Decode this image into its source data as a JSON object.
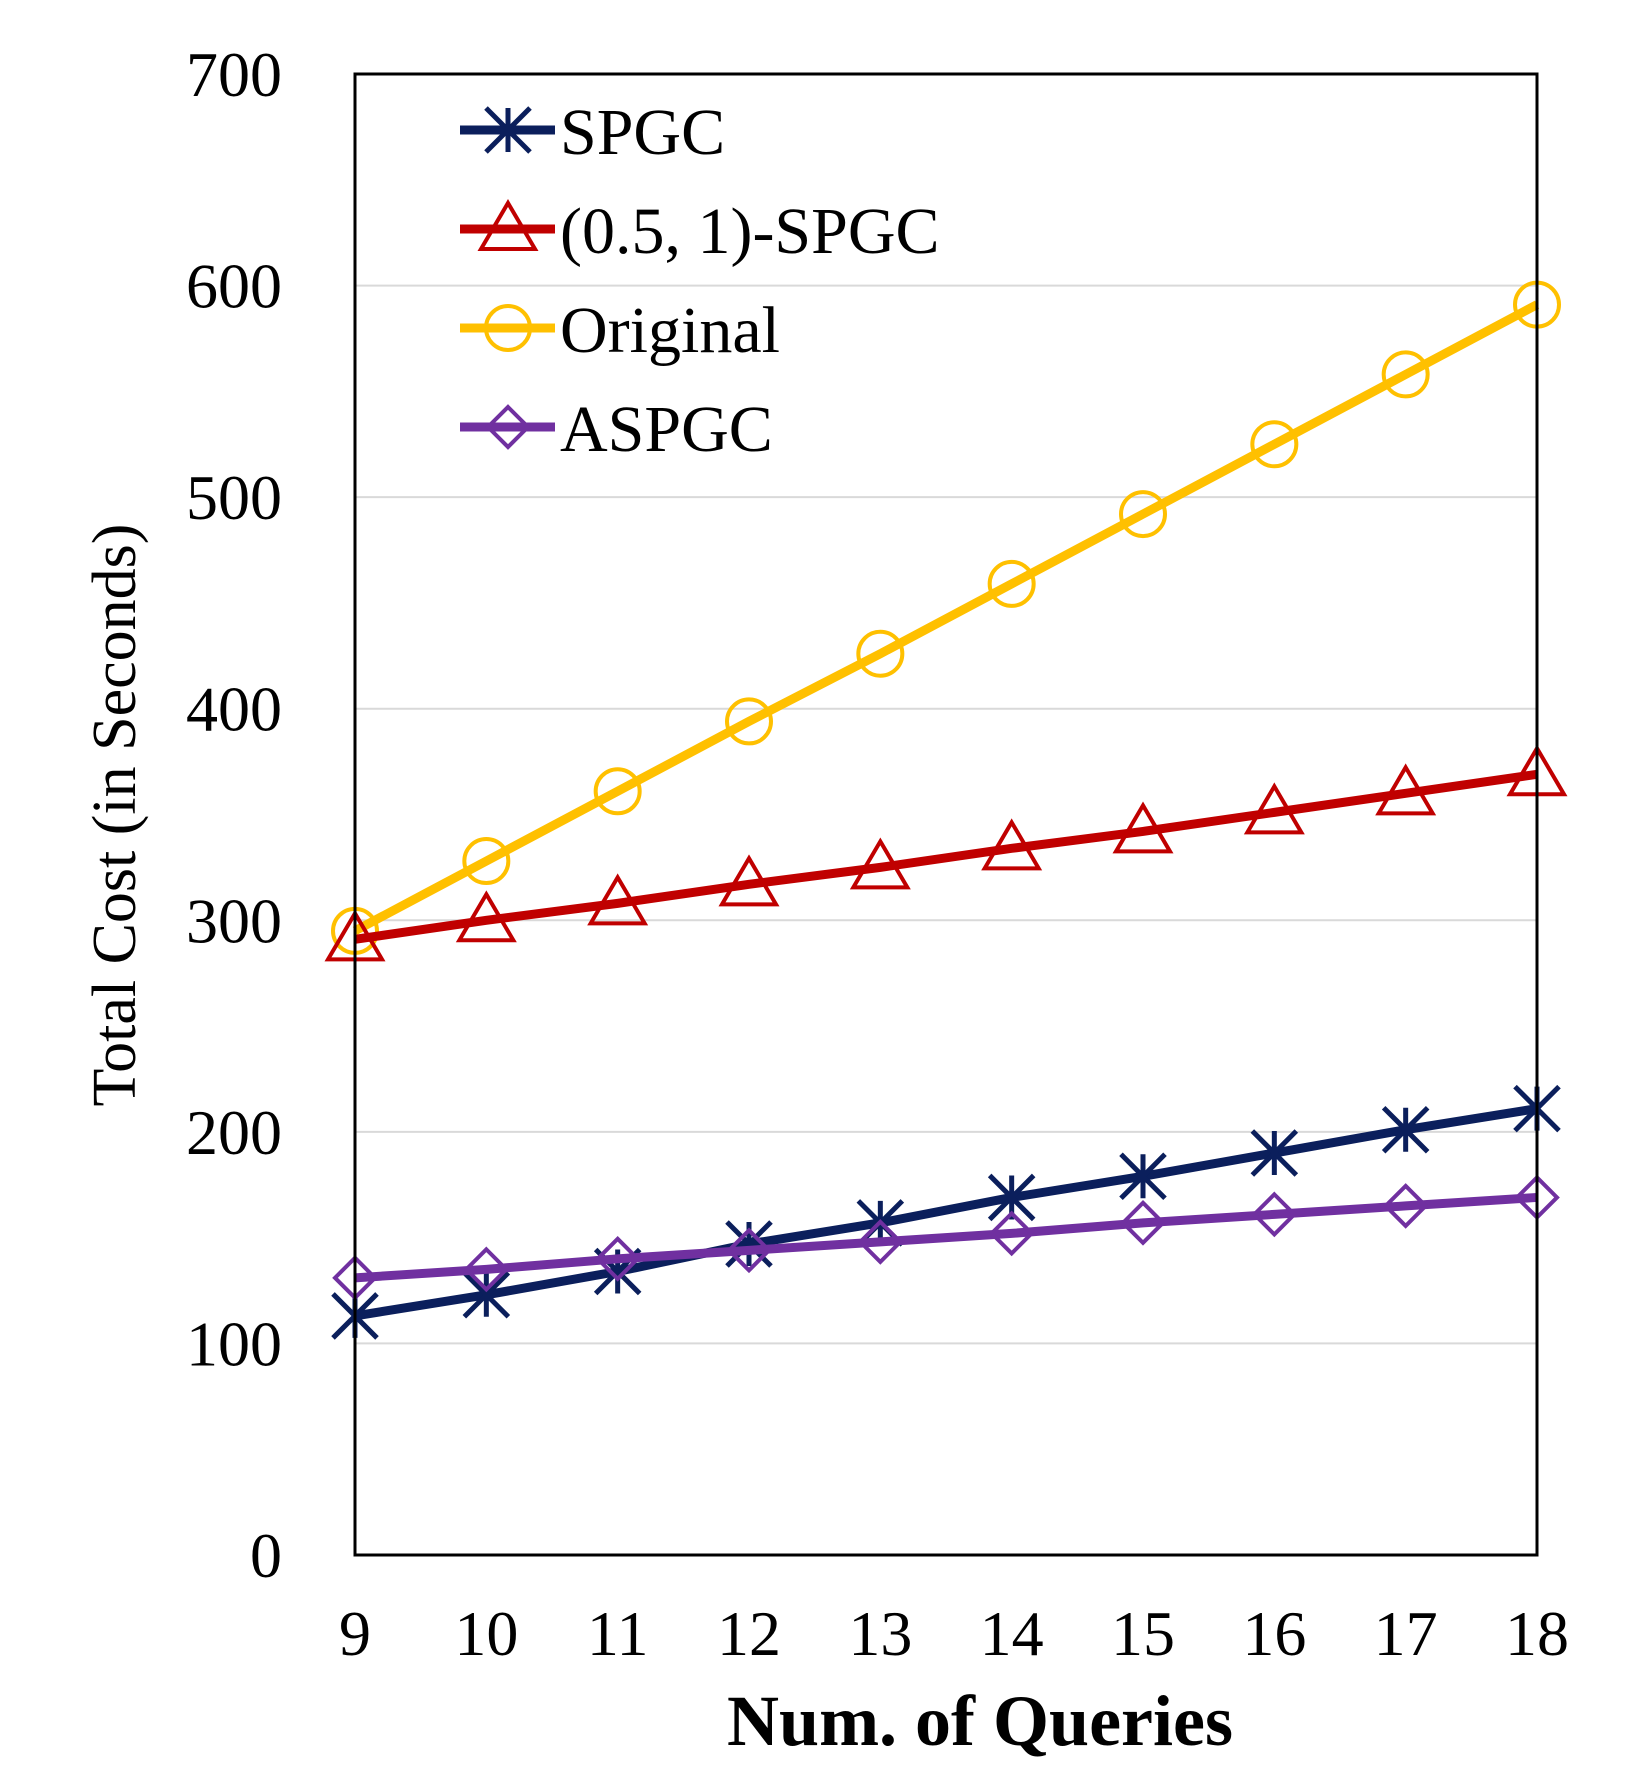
{
  "chart_data": {
    "type": "line",
    "title": "",
    "xlabel": "Num. of Queries",
    "ylabel": "Total Cost (in Seconds)",
    "x": [
      9,
      10,
      11,
      12,
      13,
      14,
      15,
      16,
      17,
      18
    ],
    "ylim": [
      0,
      700
    ],
    "yticks": [
      0,
      100,
      200,
      300,
      400,
      500,
      600,
      700
    ],
    "grid": "horizontal",
    "legend_position": "top-left",
    "series": [
      {
        "name": "SPGC",
        "color": "#0b1f5c",
        "marker": "asterisk",
        "values": [
          113,
          123,
          134,
          147,
          157,
          169,
          179,
          190,
          201,
          211
        ]
      },
      {
        "name": "(0.5, 1)-SPGC",
        "color": "#c00000",
        "marker": "triangle",
        "values": [
          291,
          300,
          308,
          317,
          325,
          334,
          342,
          351,
          360,
          369
        ]
      },
      {
        "name": "Original",
        "color": "#ffc000",
        "marker": "circle",
        "values": [
          295,
          328,
          361,
          394,
          426,
          459,
          492,
          525,
          558,
          591
        ]
      },
      {
        "name": "ASPGC",
        "color": "#7030a0",
        "marker": "diamond",
        "values": [
          131,
          135,
          140,
          144,
          148,
          152,
          157,
          161,
          165,
          169
        ]
      }
    ]
  }
}
